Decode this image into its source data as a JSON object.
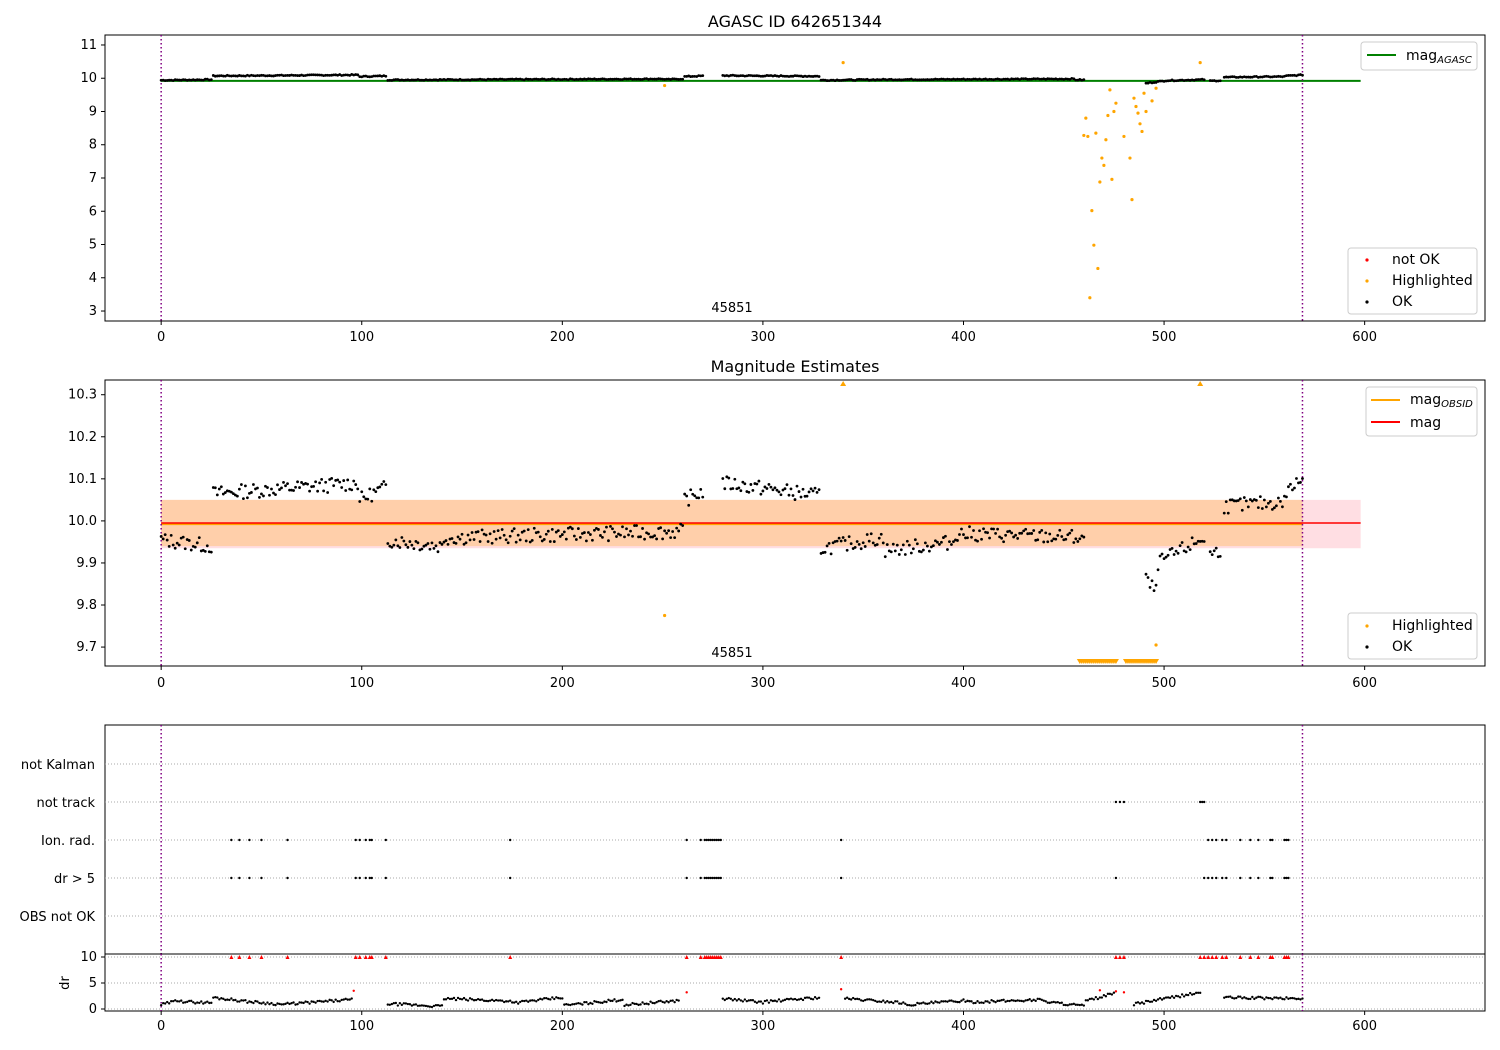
{
  "chart_data": [
    {
      "type": "scatter",
      "title": "AGASC ID 642651344",
      "xlim": [
        -28,
        660
      ],
      "ylim": [
        2.7,
        11.3
      ],
      "xticks": [
        "0",
        "100",
        "200",
        "300",
        "400",
        "500",
        "600"
      ],
      "yticks": [
        "3",
        "4",
        "5",
        "6",
        "7",
        "8",
        "9",
        "10",
        "11"
      ],
      "obsid_label": "45851",
      "obsid_x": 285,
      "obs_bounds": [
        0,
        569
      ],
      "mag_agasc": 9.92,
      "mag_agasc_label": "mag",
      "mag_agasc_sub": "AGASC",
      "legend_top": [
        {
          "label": "mag",
          "sub": "AGASC",
          "color": "#008000"
        }
      ],
      "legend_bottom": [
        {
          "label": "not OK",
          "color": "#ff0000"
        },
        {
          "label": "Highlighted",
          "color": "#ffa500"
        },
        {
          "label": "OK",
          "color": "#000000"
        }
      ],
      "series": [
        {
          "name": "OK",
          "color": "#000000",
          "segments": [
            [
              0,
              25,
              9.94,
              9.96
            ],
            [
              26,
              98,
              10.07,
              10.1
            ],
            [
              99,
              112,
              10.05,
              10.07
            ],
            [
              113,
              250,
              9.95,
              9.98
            ],
            [
              251,
              260,
              9.96,
              9.98
            ],
            [
              261,
              270,
              10.05,
              10.07
            ],
            [
              280,
              328,
              10.08,
              10.06
            ],
            [
              329,
              360,
              9.94,
              9.96
            ],
            [
              361,
              455,
              9.96,
              9.98
            ],
            [
              456,
              460,
              9.95,
              9.95
            ],
            [
              491,
              500,
              9.85,
              9.92
            ],
            [
              501,
              520,
              9.93,
              9.96
            ],
            [
              523,
              528,
              9.92,
              9.93
            ],
            [
              530,
              560,
              10.03,
              10.05
            ],
            [
              561,
              569,
              10.07,
              10.1
            ]
          ]
        },
        {
          "name": "Highlighted",
          "color": "#ffa500",
          "points": [
            [
              251,
              9.78
            ],
            [
              340,
              10.47
            ],
            [
              518,
              10.47
            ],
            [
              460,
              8.28
            ],
            [
              461,
              8.8
            ],
            [
              462,
              8.25
            ],
            [
              463,
              3.4
            ],
            [
              464,
              6.02
            ],
            [
              465,
              4.98
            ],
            [
              466,
              8.35
            ],
            [
              467,
              4.28
            ],
            [
              468,
              6.88
            ],
            [
              469,
              7.6
            ],
            [
              470,
              7.38
            ],
            [
              471,
              8.15
            ],
            [
              472,
              8.88
            ],
            [
              473,
              9.65
            ],
            [
              474,
              6.96
            ],
            [
              475,
              9.0
            ],
            [
              476,
              9.25
            ],
            [
              480,
              8.25
            ],
            [
              483,
              7.6
            ],
            [
              484,
              6.35
            ],
            [
              485,
              9.4
            ],
            [
              486,
              9.15
            ],
            [
              487,
              8.95
            ],
            [
              488,
              8.63
            ],
            [
              489,
              8.4
            ],
            [
              490,
              9.55
            ],
            [
              491,
              9.0
            ],
            [
              494,
              9.32
            ],
            [
              496,
              9.7
            ]
          ]
        }
      ]
    },
    {
      "type": "scatter",
      "title": "Magnitude Estimates",
      "xlim": [
        -28,
        660
      ],
      "ylim": [
        9.655,
        10.335
      ],
      "xticks": [
        "0",
        "100",
        "200",
        "300",
        "400",
        "500",
        "600"
      ],
      "yticks": [
        "9.7",
        "9.8",
        "9.9",
        "10.0",
        "10.1",
        "10.2",
        "10.3"
      ],
      "obsid_label": "45851",
      "obsid_x": 285,
      "obs_bounds": [
        0,
        569
      ],
      "mag": 9.995,
      "mag_band": [
        9.935,
        10.05
      ],
      "mag_obsid": 9.993,
      "mag_obsid_band": [
        9.94,
        10.05
      ],
      "legend_top": [
        {
          "label": "mag",
          "sub": "OBSID",
          "color": "#ffa500"
        },
        {
          "label": "mag",
          "sub": "",
          "color": "#ff0000"
        }
      ],
      "legend_bottom": [
        {
          "label": "Highlighted",
          "color": "#ffa500"
        },
        {
          "label": "OK",
          "color": "#000000"
        }
      ],
      "series": [
        {
          "name": "OK",
          "color": "#000000",
          "segments": [
            [
              0,
              25,
              9.955,
              9.94
            ],
            [
              26,
              98,
              10.065,
              10.09
            ],
            [
              99,
              112,
              10.05,
              10.08
            ],
            [
              113,
              140,
              9.955,
              9.94
            ],
            [
              141,
              260,
              9.96,
              9.975
            ],
            [
              261,
              270,
              10.05,
              10.07
            ],
            [
              280,
              328,
              10.09,
              10.06
            ],
            [
              329,
              360,
              9.935,
              9.96
            ],
            [
              361,
              395,
              9.93,
              9.95
            ],
            [
              396,
              460,
              9.97,
              9.96
            ],
            [
              491,
              496,
              9.86,
              9.83
            ],
            [
              497,
              520,
              9.9,
              9.96
            ],
            [
              523,
              528,
              9.92,
              9.93
            ],
            [
              530,
              560,
              10.035,
              10.045
            ],
            [
              561,
              569,
              10.07,
              10.1
            ]
          ]
        },
        {
          "name": "Highlighted",
          "color": "#ffa500",
          "points": [
            [
              251,
              9.775
            ],
            [
              496,
              9.705
            ]
          ]
        }
      ],
      "offscale_up_x": [
        340,
        518
      ],
      "offscale_down_range": [
        458,
        496
      ]
    },
    {
      "type": "scatter",
      "xlim": [
        -28,
        660
      ],
      "xticks": [
        "0",
        "100",
        "200",
        "300",
        "400",
        "500",
        "600"
      ],
      "obs_bounds": [
        0,
        569
      ],
      "flag_labels": [
        "not Kalman",
        "not track",
        "Ion. rad.",
        "dr > 5",
        "OBS not OK"
      ],
      "flags": {
        "not track": [
          476,
          478,
          480,
          518,
          519,
          520
        ],
        "Ion. rad.": [
          35,
          39,
          44,
          50,
          63,
          97,
          99,
          102,
          104,
          105,
          112,
          174,
          262,
          269,
          271,
          272,
          273,
          274,
          275,
          276,
          277,
          278,
          279,
          339,
          522,
          524,
          526,
          529,
          531,
          538,
          543,
          547,
          553,
          554,
          560,
          561,
          562
        ],
        "dr > 5": [
          35,
          39,
          44,
          50,
          63,
          97,
          99,
          102,
          104,
          105,
          112,
          174,
          262,
          269,
          271,
          272,
          273,
          274,
          275,
          276,
          277,
          278,
          279,
          339,
          476,
          520,
          522,
          524,
          526,
          529,
          531,
          538,
          543,
          547,
          553,
          554,
          560,
          561,
          562
        ]
      },
      "dr_ylabel": "dr",
      "dr_yticks": [
        "0",
        "5",
        "10"
      ],
      "dr_ylim": [
        0,
        10
      ],
      "dr_segments": [
        [
          0,
          10,
          0.8,
          1.8
        ],
        [
          11,
          25,
          1.4,
          1.2
        ],
        [
          26,
          40,
          2.2,
          1.6
        ],
        [
          41,
          60,
          1.5,
          0.9
        ],
        [
          61,
          95,
          0.9,
          1.8
        ],
        [
          113,
          140,
          1.0,
          0.5
        ],
        [
          141,
          175,
          2.0,
          1.5
        ],
        [
          176,
          200,
          1.2,
          2.2
        ],
        [
          201,
          230,
          0.7,
          1.8
        ],
        [
          231,
          258,
          0.8,
          1.6
        ],
        [
          280,
          300,
          2.0,
          1.3
        ],
        [
          301,
          328,
          1.4,
          2.2
        ],
        [
          341,
          370,
          2.0,
          1.2
        ],
        [
          371,
          400,
          0.8,
          1.6
        ],
        [
          401,
          440,
          1.3,
          1.8
        ],
        [
          441,
          460,
          1.4,
          0.6
        ],
        [
          461,
          475,
          1.5,
          3.0
        ],
        [
          485,
          500,
          0.9,
          2.0
        ],
        [
          501,
          518,
          2.0,
          3.2
        ],
        [
          530,
          569,
          2.2,
          2.0
        ]
      ],
      "dr_red_points": [
        [
          96,
          3.5
        ],
        [
          262,
          3.2
        ],
        [
          339,
          3.8
        ],
        [
          468,
          3.6
        ],
        [
          476,
          3.4
        ],
        [
          480,
          3.2
        ]
      ],
      "dr_clip_x": [
        35,
        39,
        44,
        50,
        63,
        97,
        99,
        102,
        104,
        105,
        112,
        174,
        262,
        269,
        271,
        272,
        273,
        274,
        275,
        276,
        277,
        278,
        279,
        339,
        476,
        478,
        480,
        518,
        520,
        522,
        524,
        526,
        529,
        531,
        538,
        543,
        547,
        553,
        554,
        560,
        561,
        562
      ]
    }
  ]
}
